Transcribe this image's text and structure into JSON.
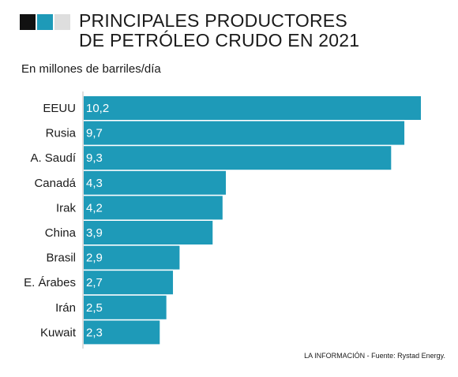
{
  "brand_squares": [
    {
      "color": "#111111"
    },
    {
      "color": "#1e9ab8"
    },
    {
      "color": "#dedede"
    }
  ],
  "header": {
    "title_line1": "PRINCIPALES PRODUCTORES",
    "title_line2": "DE PETRÓLEO CRUDO EN 2021",
    "subtitle": "En millones de barriles/día"
  },
  "source": "LA INFORMACIÓN - Fuente: Rystad Energy.",
  "colors": {
    "bar": "#1e9ab8",
    "bar_text": "#ffffff",
    "axis": "#bdbdbd"
  },
  "chart_data": {
    "type": "bar",
    "orientation": "horizontal",
    "categories": [
      "EEUU",
      "Rusia",
      "A. Saudí",
      "Canadá",
      "Irak",
      "China",
      "Brasil",
      "E. Árabes",
      "Irán",
      "Kuwait"
    ],
    "values": [
      10.2,
      9.7,
      9.3,
      4.3,
      4.2,
      3.9,
      2.9,
      2.7,
      2.5,
      2.3
    ],
    "value_labels": [
      "10,2",
      "9,7",
      "9,3",
      "4,3",
      "4,2",
      "3,9",
      "2,9",
      "2,7",
      "2,5",
      "2,3"
    ],
    "xlim": [
      0,
      10.2
    ],
    "grid": false,
    "legend": "none"
  }
}
